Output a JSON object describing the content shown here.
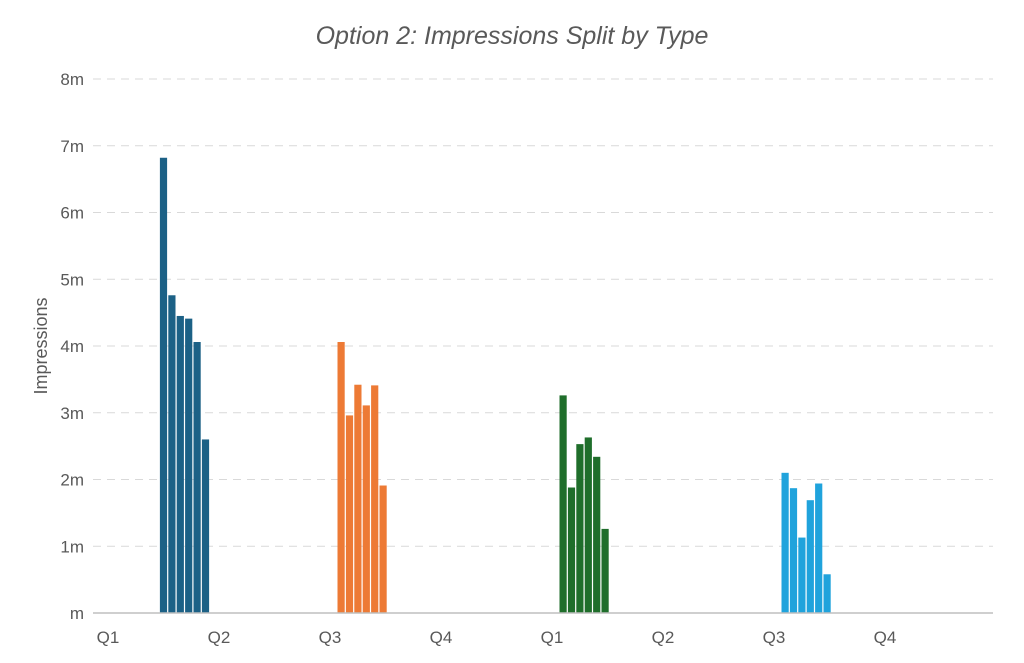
{
  "chart_data": {
    "type": "bar",
    "title": "Option 2: Impressions Split by Type",
    "xlabel": "",
    "ylabel": "Impressions",
    "ylim": [
      0,
      8
    ],
    "y_ticks": [
      {
        "value": 0,
        "label": "m"
      },
      {
        "value": 1,
        "label": "1m"
      },
      {
        "value": 2,
        "label": "2m"
      },
      {
        "value": 3,
        "label": "3m"
      },
      {
        "value": 4,
        "label": "4m"
      },
      {
        "value": 5,
        "label": "5m"
      },
      {
        "value": 6,
        "label": "6m"
      },
      {
        "value": 7,
        "label": "7m"
      },
      {
        "value": 8,
        "label": "8m"
      }
    ],
    "categories": [
      "Q1",
      "Q2",
      "Q3",
      "Q4",
      "Q1",
      "Q2",
      "Q3",
      "Q4"
    ],
    "grid": true,
    "legend": "none",
    "groups": [
      {
        "position": 0.5,
        "color": "#1c6186",
        "values": [
          6.82,
          4.76,
          4.45,
          4.41,
          4.06,
          2.6
        ]
      },
      {
        "position": 2.1,
        "color": "#ed7a35",
        "values": [
          4.06,
          2.96,
          3.42,
          3.11,
          3.41,
          1.91
        ]
      },
      {
        "position": 4.1,
        "color": "#1f6e2b",
        "values": [
          3.26,
          1.88,
          2.53,
          2.63,
          2.34,
          1.26
        ]
      },
      {
        "position": 6.1,
        "color": "#20a3dc",
        "values": [
          2.1,
          1.87,
          1.13,
          1.69,
          1.94,
          0.58
        ]
      }
    ]
  }
}
